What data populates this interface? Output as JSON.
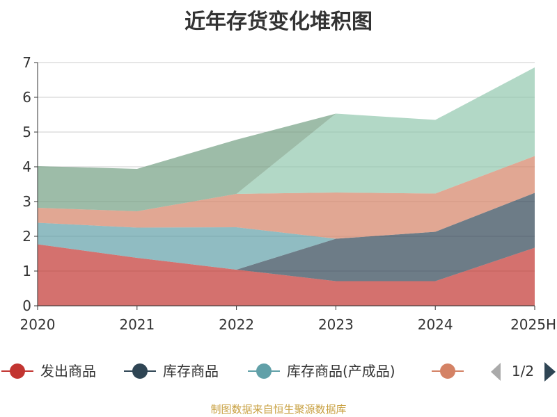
{
  "colors": {
    "series": [
      "#c23531",
      "#2f4554",
      "#61a0a8",
      "#d48265",
      "#91c7ae",
      "#749f83"
    ],
    "axis": "#333333",
    "grid": "#cccccc",
    "pager_active": "#2f4554",
    "pager_inactive": "#aaaaaa",
    "source": "#c8a040"
  },
  "legend": {
    "position": "bottom",
    "page_indicator": "1/2",
    "prev_icon": "triangle-left-icon",
    "next_icon": "triangle-right-icon"
  },
  "footer": {
    "source": "制图数据来自恒生聚源数据库"
  },
  "chart_data": {
    "type": "area",
    "stacked": true,
    "title": "近年存货变化堆积图",
    "x": [
      "2020",
      "2021",
      "2022",
      "2023",
      "2024",
      "2025H"
    ],
    "ylim": [
      0,
      7
    ],
    "yticks": [
      0,
      1,
      2,
      3,
      4,
      5,
      6,
      7
    ],
    "grid": true,
    "series": [
      {
        "name": "发出商品",
        "values": [
          1.77,
          1.38,
          1.04,
          0.71,
          0.71,
          1.67
        ]
      },
      {
        "name": "库存商品",
        "values": [
          0,
          0,
          0,
          1.22,
          1.42,
          1.58
        ]
      },
      {
        "name": "库存商品(产成品)",
        "values": [
          0.62,
          0.87,
          1.22,
          0,
          0,
          0
        ]
      },
      {
        "values": [
          0.43,
          0.47,
          0.96,
          1.33,
          1.1,
          1.06
        ]
      },
      {
        "values": [
          0,
          0,
          0,
          2.27,
          2.12,
          2.55
        ]
      },
      {
        "values": [
          1.2,
          1.22,
          1.56,
          0,
          0,
          0
        ]
      }
    ],
    "legend_visible": [
      "发出商品",
      "库存商品",
      "库存商品(产成品)",
      ""
    ]
  }
}
